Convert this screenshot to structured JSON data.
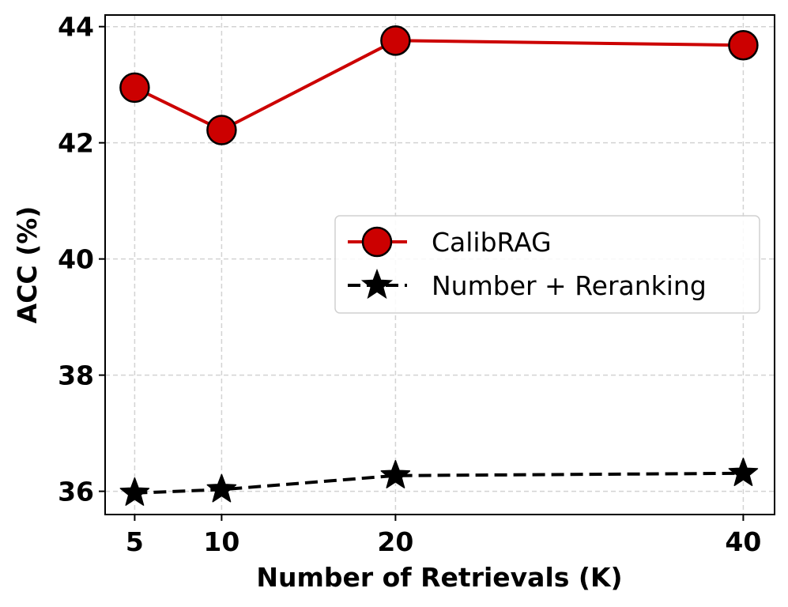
{
  "chart_data": {
    "type": "line",
    "xlabel": "Number of Retrievals (K)",
    "ylabel": "ACC (%)",
    "x": [
      5,
      10,
      20,
      40
    ],
    "x_ticks": [
      "5",
      "10",
      "20",
      "40"
    ],
    "y_ticks": [
      "36",
      "38",
      "40",
      "42",
      "44"
    ],
    "xlim": [
      3.3,
      41.8
    ],
    "ylim": [
      35.6,
      44.2
    ],
    "grid": true,
    "legend_position": "center-right",
    "series": [
      {
        "name": "CalibRAG",
        "values": [
          42.95,
          42.22,
          43.76,
          43.68
        ],
        "color": "#cc0000",
        "marker": "circle",
        "line_style": "solid"
      },
      {
        "name": "Number + Reranking",
        "values": [
          35.97,
          36.03,
          36.27,
          36.31
        ],
        "color": "#000000",
        "marker": "star",
        "line_style": "dashed"
      }
    ]
  }
}
